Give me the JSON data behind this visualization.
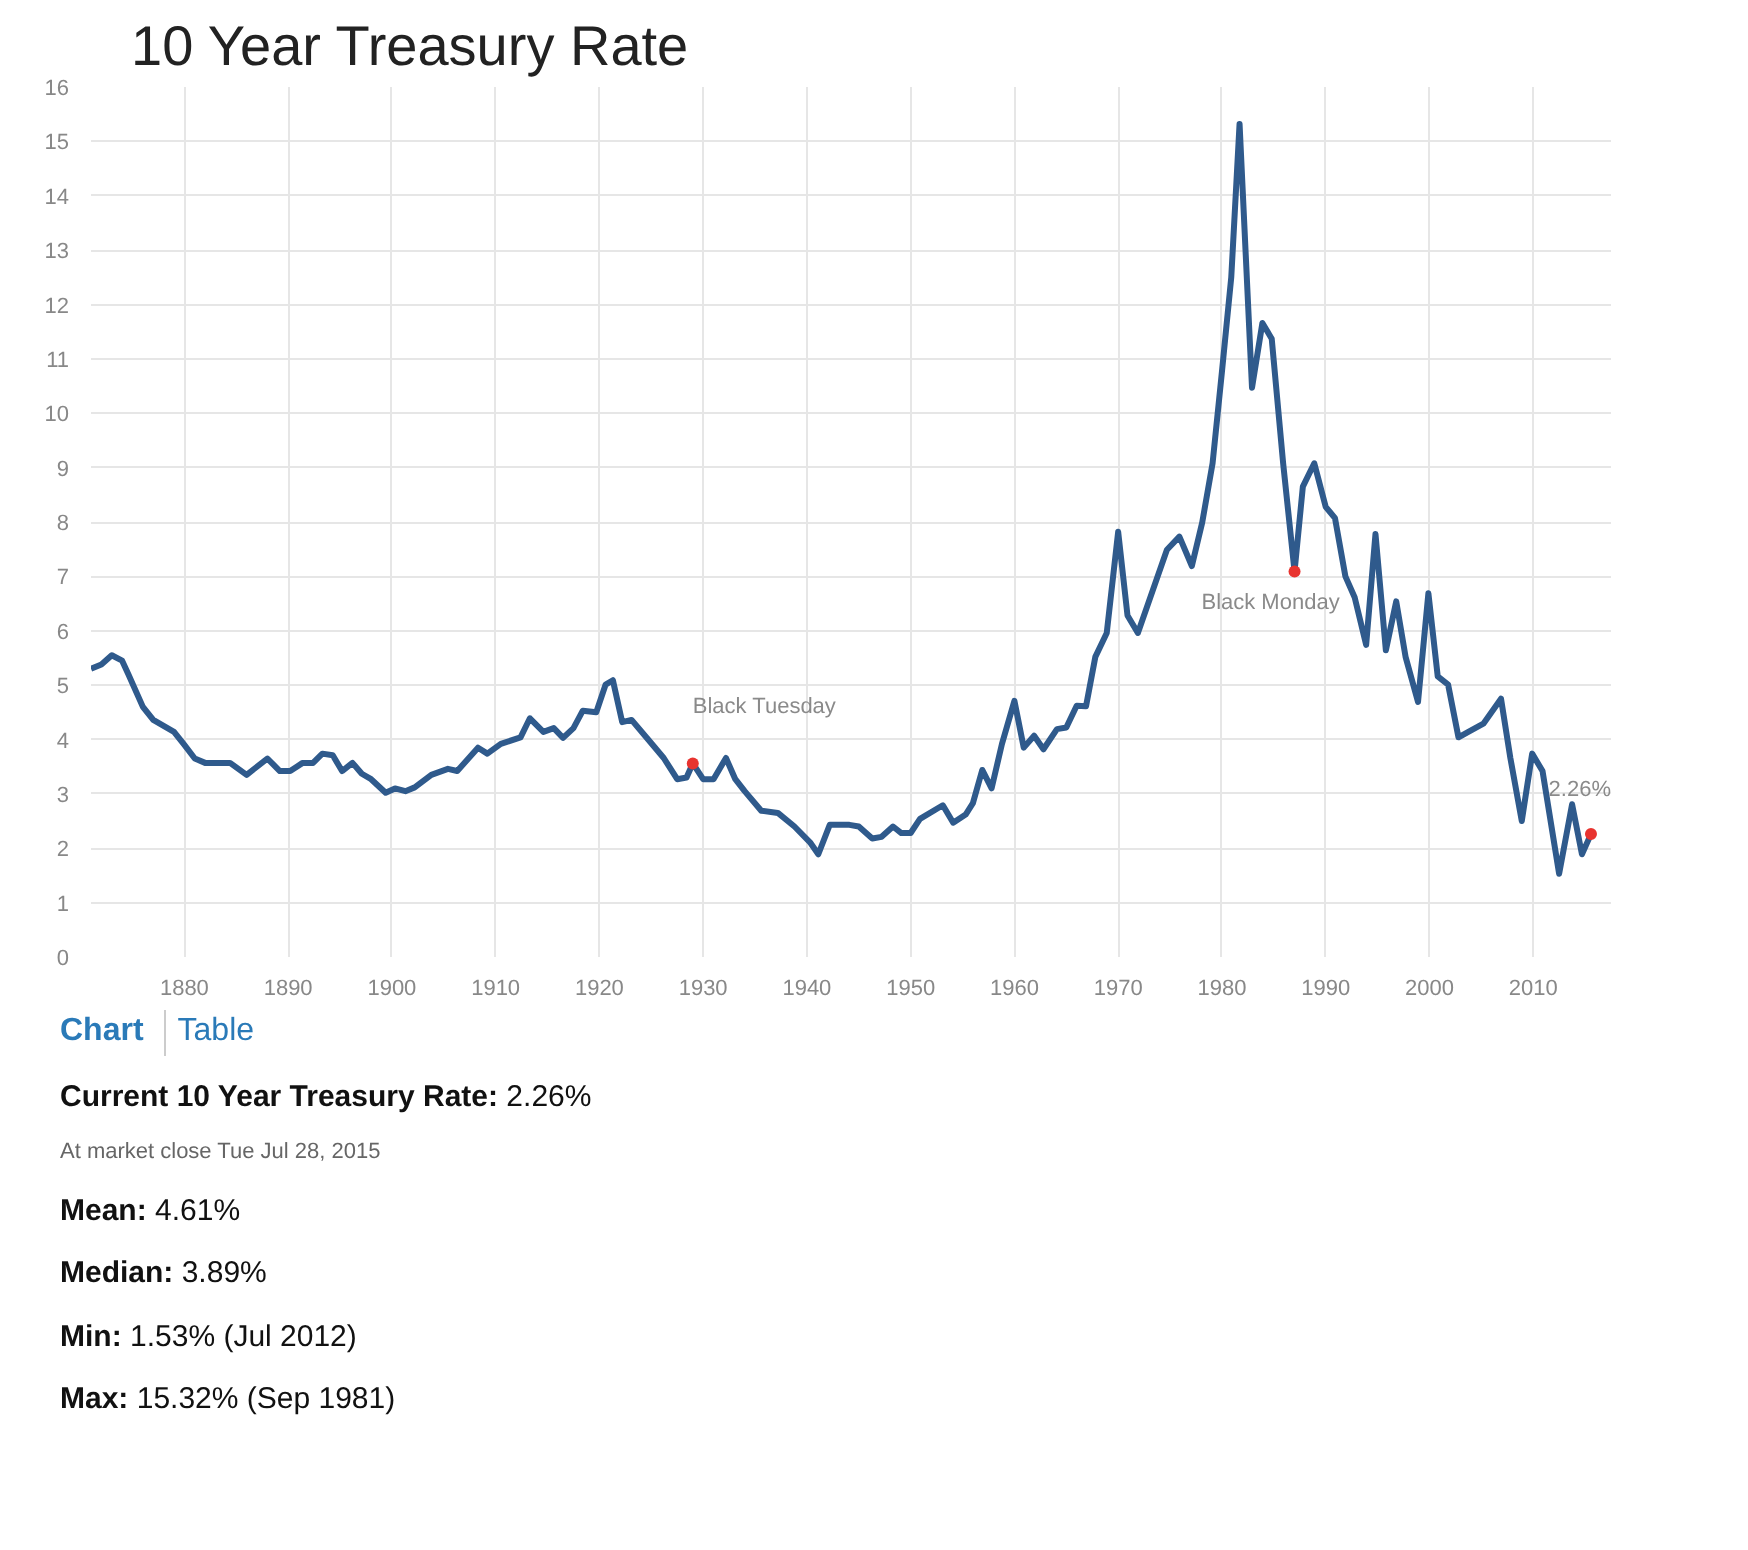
{
  "chart_data": {
    "type": "line",
    "title": "10 Year Treasury Rate",
    "xlim": [
      1871,
      2017.5
    ],
    "xticks": [
      1880,
      1890,
      1900,
      1910,
      1920,
      1930,
      1940,
      1950,
      1960,
      1970,
      1980,
      1990,
      2000,
      2010
    ],
    "ylim": [
      0,
      16
    ],
    "yticks": [
      0,
      1,
      2,
      3,
      4,
      5,
      6,
      7,
      8,
      9,
      10,
      11,
      12,
      13,
      14,
      15,
      16
    ],
    "grid": true,
    "marker": "none",
    "line_style": "solid",
    "series": [
      {
        "type": "line",
        "color": "#2f5a8c",
        "x": [
          1871,
          1872,
          1873,
          1874,
          1874.6,
          1876,
          1877,
          1879,
          1880,
          1881,
          1882,
          1884.4,
          1886,
          1888,
          1889.2,
          1890.2,
          1891.4,
          1892.4,
          1893.3,
          1894.3,
          1895.2,
          1896.2,
          1897.1,
          1898,
          1899.4,
          1900.3,
          1901.3,
          1902.2,
          1903.8,
          1905.4,
          1906.3,
          1908.3,
          1909.2,
          1910.5,
          1912.4,
          1913.3,
          1914.6,
          1915.6,
          1916.5,
          1917.5,
          1918.4,
          1919.7,
          1920.6,
          1921.3,
          1922.2,
          1923.1,
          1924.7,
          1926.2,
          1927.5,
          1928.4,
          1929,
          1930,
          1931,
          1932.2,
          1933.1,
          1934,
          1935.6,
          1937.2,
          1938.8,
          1940.3,
          1941.1,
          1942.2,
          1944.1,
          1945,
          1946.3,
          1947.2,
          1948.3,
          1949.1,
          1950,
          1950.9,
          1953.1,
          1954.1,
          1955.3,
          1956,
          1956.9,
          1957.8,
          1958.8,
          1960,
          1960.9,
          1961.9,
          1962.8,
          1964.1,
          1965,
          1966,
          1966.9,
          1967.8,
          1968.9,
          1970,
          1970.9,
          1971.9,
          1974.7,
          1975.9,
          1977.1,
          1978.1,
          1979.1,
          1980,
          1980.9,
          1981.7,
          1982.9,
          1983.9,
          1984.8,
          1985.9,
          1987,
          1987.8,
          1988.9,
          1990,
          1990.9,
          1991.9,
          1992.8,
          1993.9,
          1994.8,
          1995.8,
          1996.8,
          1997.7,
          1998.9,
          1999.9,
          2000.8,
          2001.8,
          2002.8,
          2003.75,
          2005.2,
          2006.9,
          2007.8,
          2008.9,
          2009.9,
          2010.9,
          2012.5,
          2013.75,
          2014.7,
          2015.57
        ],
        "values": [
          5.3,
          5.38,
          5.55,
          5.45,
          5.2,
          4.6,
          4.36,
          4.14,
          3.9,
          3.65,
          3.57,
          3.57,
          3.35,
          3.65,
          3.42,
          3.42,
          3.57,
          3.57,
          3.74,
          3.71,
          3.42,
          3.57,
          3.37,
          3.27,
          3.02,
          3.1,
          3.05,
          3.12,
          3.35,
          3.46,
          3.42,
          3.85,
          3.74,
          3.92,
          4.04,
          4.39,
          4.14,
          4.21,
          4.03,
          4.21,
          4.53,
          4.5,
          5.01,
          5.09,
          4.32,
          4.36,
          4.0,
          3.66,
          3.27,
          3.3,
          3.56,
          3.27,
          3.27,
          3.66,
          3.27,
          3.05,
          2.69,
          2.65,
          2.4,
          2.11,
          1.89,
          2.43,
          2.43,
          2.4,
          2.18,
          2.21,
          2.4,
          2.28,
          2.28,
          2.54,
          2.79,
          2.47,
          2.62,
          2.83,
          3.44,
          3.1,
          3.92,
          4.71,
          3.85,
          4.07,
          3.82,
          4.19,
          4.22,
          4.62,
          4.61,
          5.52,
          5.96,
          7.82,
          6.28,
          5.96,
          7.49,
          7.73,
          7.19,
          7.99,
          9.08,
          10.76,
          12.5,
          15.32,
          10.47,
          11.66,
          11.37,
          9.08,
          7.09,
          8.65,
          9.08,
          8.28,
          8.07,
          7.0,
          6.61,
          5.74,
          7.78,
          5.64,
          6.54,
          5.52,
          4.69,
          6.69,
          5.16,
          5.01,
          4.04,
          4.14,
          4.29,
          4.75,
          3.66,
          2.5,
          3.74,
          3.42,
          1.53,
          2.81,
          1.89,
          2.26
        ]
      },
      {
        "type": "scatter",
        "marker": "circle",
        "color": "#e8332f",
        "x": [
          1929,
          1987,
          2015.57
        ],
        "values": [
          3.56,
          7.09,
          2.26
        ]
      }
    ],
    "annotations": [
      {
        "text": "Black Tuesday",
        "x": 1929,
        "y": 3.56
      },
      {
        "text": "Black Monday",
        "x": 1987,
        "y": 7.09
      },
      {
        "text": "2.26%",
        "x": 2015.57,
        "y": 2.26
      },
      "Chart",
      "Table",
      "Current 10 Year Treasury Rate: 2.26%",
      "At market close Tue Jul 28, 2015",
      "Mean: 4.61%",
      "Median: 3.89%",
      "Min: 1.53% (Jul 2012)",
      "Max: 15.32% (Sep 1981)"
    ]
  }
}
